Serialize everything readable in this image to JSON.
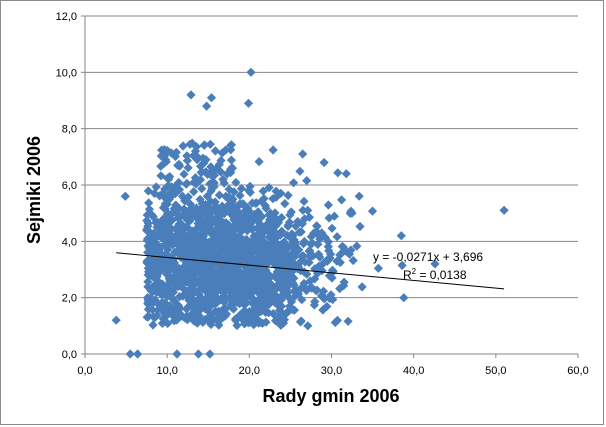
{
  "chart_data": {
    "type": "scatter",
    "xlabel": "Rady gmin 2006",
    "ylabel": "Sejmiki 2006",
    "xlim": [
      0,
      60
    ],
    "ylim": [
      0,
      12
    ],
    "x_ticks": [
      "0,0",
      "10,0",
      "20,0",
      "30,0",
      "40,0",
      "50,0",
      "60,0"
    ],
    "y_ticks": [
      "0,0",
      "2,0",
      "4,0",
      "6,0",
      "8,0",
      "10,0",
      "12,0"
    ],
    "x_tick_values": [
      0,
      10,
      20,
      30,
      40,
      50,
      60
    ],
    "y_tick_values": [
      0,
      2,
      4,
      6,
      8,
      10,
      12
    ],
    "grid": "horizontal",
    "marker": "diamond",
    "marker_color": "#4a7ebb",
    "trendline": {
      "slope": -0.0271,
      "intercept": 3.696,
      "x_range": [
        3.8,
        51
      ],
      "color": "#000000",
      "equation": "y = -0,0271x + 3,696",
      "r2_prefix": "R",
      "r2_sup": "2",
      "r2_suffix": " = 0,0138"
    },
    "notable_points": [
      {
        "x": 20.2,
        "y": 10.0
      },
      {
        "x": 51.0,
        "y": 5.1
      },
      {
        "x": 3.8,
        "y": 1.2
      },
      {
        "x": 5.5,
        "y": 0.0
      },
      {
        "x": 6.4,
        "y": 0.0
      },
      {
        "x": 11.2,
        "y": 0.0
      },
      {
        "x": 13.8,
        "y": 0.0
      },
      {
        "x": 15.2,
        "y": 0.0
      },
      {
        "x": 12.9,
        "y": 9.2
      },
      {
        "x": 15.4,
        "y": 9.1
      },
      {
        "x": 19.9,
        "y": 8.9
      },
      {
        "x": 14.8,
        "y": 8.8
      },
      {
        "x": 42.6,
        "y": 3.2
      },
      {
        "x": 38.8,
        "y": 2.0
      },
      {
        "x": 29.1,
        "y": 6.8
      },
      {
        "x": 31.8,
        "y": 6.4
      },
      {
        "x": 32.5,
        "y": 5.0
      },
      {
        "x": 38.5,
        "y": 4.2
      },
      {
        "x": 4.9,
        "y": 5.6
      },
      {
        "x": 9.8,
        "y": 6.9
      },
      {
        "x": 26.5,
        "y": 7.1
      }
    ],
    "cluster": {
      "description_free": true,
      "count": 1700,
      "center_x": 17,
      "center_y": 3.2,
      "spread_x": 5.5,
      "spread_y": 1.15
    }
  }
}
